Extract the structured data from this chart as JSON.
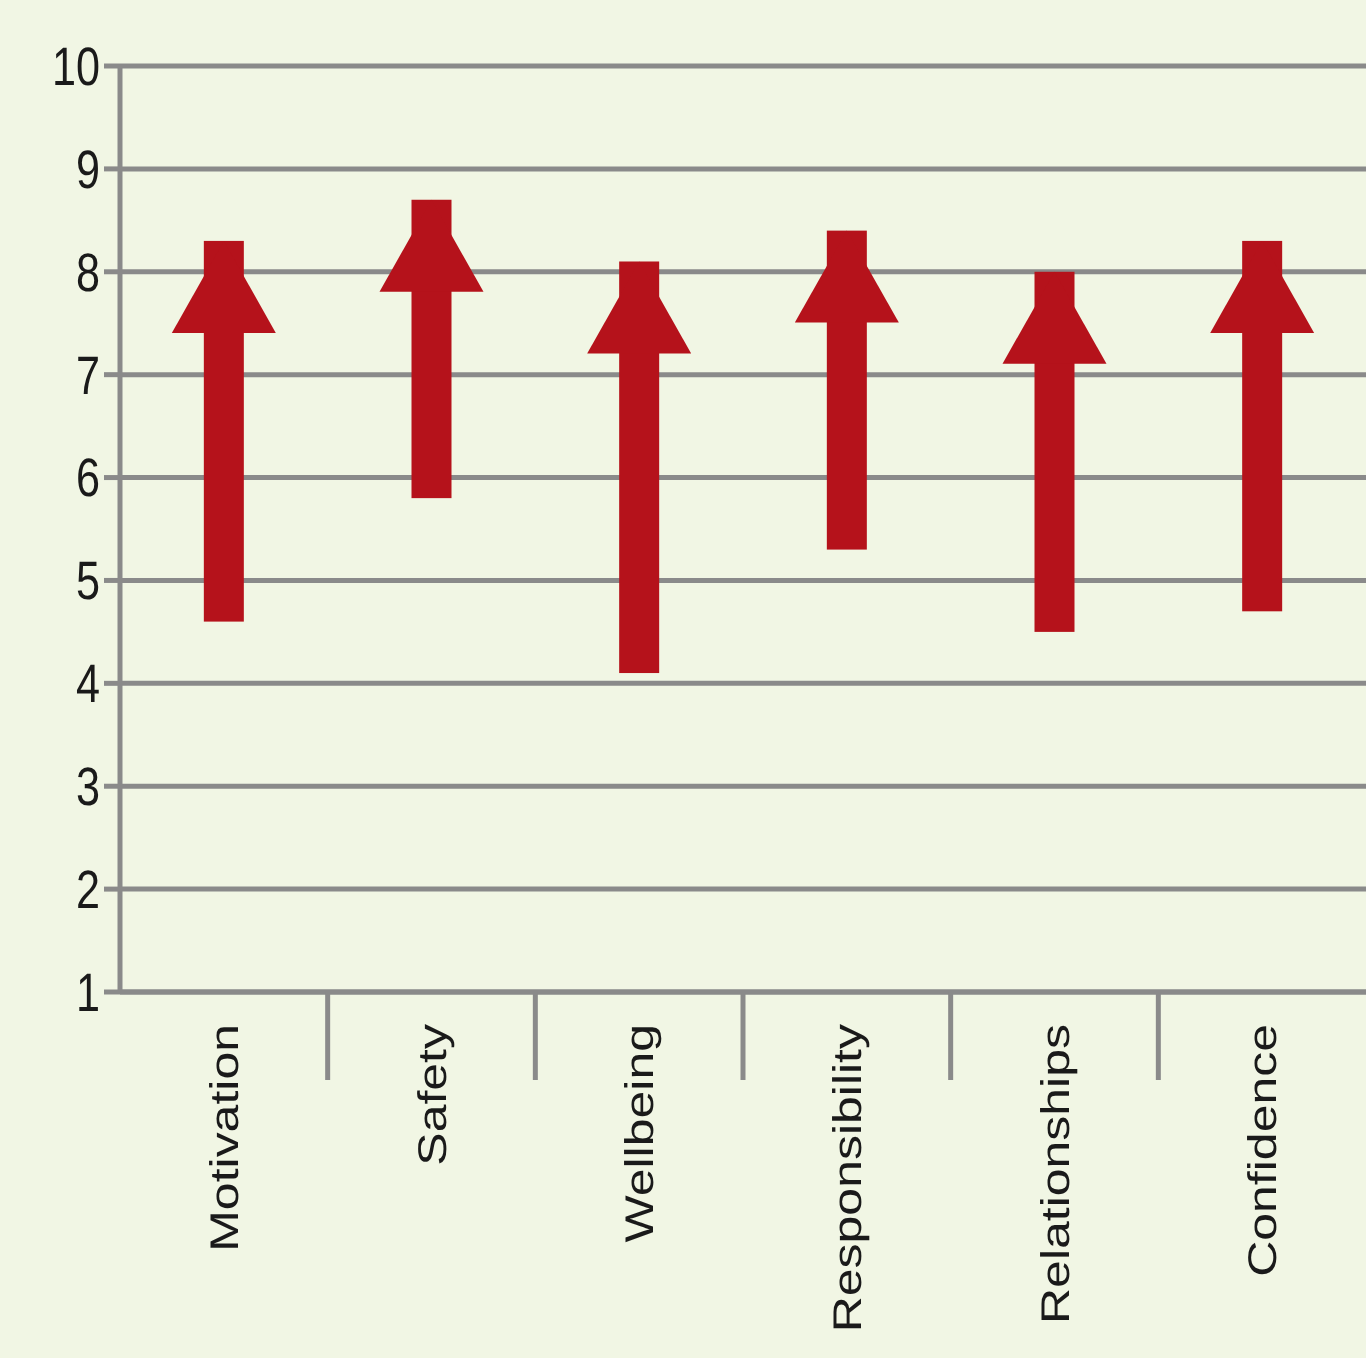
{
  "chart_data": {
    "type": "bar",
    "categories": [
      "Motivation",
      "Safety",
      "Wellbeing",
      "Responsibility",
      "Relationships",
      "Confidence"
    ],
    "base": [
      4.6,
      5.8,
      4.1,
      5.3,
      4.5,
      4.7
    ],
    "values": [
      3.7,
      2.9,
      4.0,
      3.1,
      3.5,
      3.6
    ],
    "color": "#b5121b",
    "ylim": [
      1,
      10
    ],
    "yticks": [
      1,
      2,
      3,
      4,
      5,
      6,
      7,
      8,
      9,
      10
    ],
    "grid": "y"
  }
}
